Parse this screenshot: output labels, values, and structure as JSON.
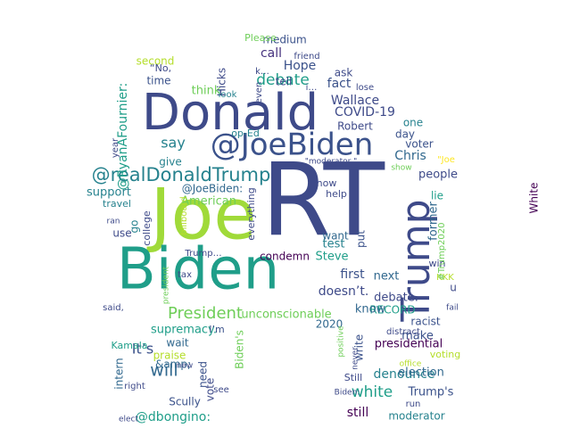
{
  "colors": {
    "background": "#ffffff",
    "palette": [
      "#440154",
      "#482878",
      "#3e4a89",
      "#31688e",
      "#26828e",
      "#1f9e89",
      "#35b779",
      "#6ece58",
      "#b5de2b",
      "#fde725"
    ]
  },
  "words": [
    {
      "text": "RT",
      "color": "#3e4a89"
    },
    {
      "text": "Joe",
      "color": "#a0da39"
    },
    {
      "text": "Biden",
      "color": "#1f9e89"
    },
    {
      "text": "Donald",
      "color": "#3e4a89"
    },
    {
      "text": "Trump",
      "color": "#3e4a89"
    },
    {
      "text": "@JoeBiden",
      "color": "#3b528b"
    },
    {
      "text": "@realDonaldTrump",
      "color": "#26828e"
    },
    {
      "text": "President",
      "color": "#6ece58"
    },
    {
      "text": "debate",
      "color": "#1f9e89"
    },
    {
      "text": "say",
      "color": "#26828e"
    },
    {
      "text": "will",
      "color": "#31688e"
    },
    {
      "text": "white",
      "color": "#1f9e89"
    },
    {
      "text": "Chris",
      "color": "#31688e"
    },
    {
      "text": "COVID-19",
      "color": "#3e4a89"
    },
    {
      "text": "Wallace",
      "color": "#3e4a89"
    },
    {
      "text": "fact",
      "color": "#3b528b"
    },
    {
      "text": "Hope",
      "color": "#3b528b"
    },
    {
      "text": "call",
      "color": "#46327e"
    },
    {
      "text": "medium",
      "color": "#3b528b"
    },
    {
      "text": "unconscionable",
      "color": "#6ece58"
    },
    {
      "text": "supremacy.",
      "color": "#1f9e89"
    },
    {
      "text": "It’s",
      "color": "#3b528b"
    },
    {
      "text": "denounce",
      "color": "#26828e"
    },
    {
      "text": "moderator",
      "color": "#26828e"
    },
    {
      "text": "election",
      "color": "#31688e"
    },
    {
      "text": "Trump's",
      "color": "#3b528b"
    },
    {
      "text": "Scully",
      "color": "#3b528b"
    },
    {
      "text": "@dbongino:",
      "color": "#1f9e89"
    },
    {
      "text": "still",
      "color": "#440154"
    },
    {
      "text": "people",
      "color": "#3e4a89"
    },
    {
      "text": "former",
      "color": "#31688e"
    },
    {
      "text": "condemn",
      "color": "#440154"
    },
    {
      "text": "first",
      "color": "#3b528b"
    },
    {
      "text": "next",
      "color": "#31688e"
    },
    {
      "text": "doesn’t.",
      "color": "#3e4a89"
    },
    {
      "text": "debate.",
      "color": "#3e4a89"
    },
    {
      "text": "RECORD",
      "color": "#1f9e89"
    },
    {
      "text": "know",
      "color": "#31688e"
    },
    {
      "text": "make",
      "color": "#3b528b"
    },
    {
      "text": "presidential",
      "color": "#440154"
    },
    {
      "text": "racist",
      "color": "#3b528b"
    },
    {
      "text": "Steve",
      "color": "#1f9e89"
    },
    {
      "text": "test",
      "color": "#26828e"
    },
    {
      "text": "want",
      "color": "#31688e"
    },
    {
      "text": "put",
      "color": "#3b528b"
    },
    {
      "text": "lie",
      "color": "#1f9e89"
    },
    {
      "text": "support",
      "color": "#26828e"
    },
    {
      "text": "give",
      "color": "#26828e"
    },
    {
      "text": "American",
      "color": "#6ece58"
    },
    {
      "text": "@JoeBiden:",
      "color": "#31688e"
    },
    {
      "text": "think",
      "color": "#6ece58"
    },
    {
      "text": "time",
      "color": "#3b528b"
    },
    {
      "text": "second",
      "color": "#b5de2b"
    },
    {
      "text": "Hicks",
      "color": "#3e4a89"
    },
    {
      "text": "tell",
      "color": "#3e4a89"
    },
    {
      "text": "ask",
      "color": "#3e4a89"
    },
    {
      "text": "Robert",
      "color": "#3e4a89"
    },
    {
      "text": "day",
      "color": "#3b528b"
    },
    {
      "text": "one",
      "color": "#26828e"
    },
    {
      "text": "voter",
      "color": "#3b528b"
    },
    {
      "text": "White",
      "color": "#440154"
    },
    {
      "text": "op-Ed",
      "color": "#26828e"
    },
    {
      "text": "everything",
      "color": "#3e4a89"
    },
    {
      "text": "help",
      "color": "#3e4a89"
    },
    {
      "text": "now",
      "color": "#3e4a89"
    },
    {
      "text": "@RyanAFournier:",
      "color": "#1f9e89"
    },
    {
      "text": "travel",
      "color": "#26828e"
    },
    {
      "text": "use",
      "color": "#3e4a89"
    },
    {
      "text": "go",
      "color": "#26828e"
    },
    {
      "text": "college",
      "color": "#3e4a89"
    },
    {
      "text": "wait",
      "color": "#31688e"
    },
    {
      "text": "praise",
      "color": "#b5de2b"
    },
    {
      "text": "&amp;",
      "color": "#31688e"
    },
    {
      "text": "intern",
      "color": "#31688e"
    },
    {
      "text": "need",
      "color": "#3b528b"
    },
    {
      "text": "vote",
      "color": "#3e4a89"
    },
    {
      "text": "Biden's",
      "color": "#6ece58"
    },
    {
      "text": "I’m",
      "color": "#3b528b"
    },
    {
      "text": "Kamala",
      "color": "#1f9e89"
    },
    {
      "text": "write",
      "color": "#3b528b"
    },
    {
      "text": "voting",
      "color": "#b5de2b"
    },
    {
      "text": "win",
      "color": "#3e4a89"
    },
    {
      "text": "u",
      "color": "#3e4a89"
    },
    {
      "text": "KKK",
      "color": "#b5de2b"
    },
    {
      "text": "#Trump2020",
      "color": "#6ece58"
    },
    {
      "text": "2020",
      "color": "#31688e"
    },
    {
      "text": "Please",
      "color": "#6ece58"
    },
    {
      "text": "friend",
      "color": "#3e4a89"
    },
    {
      "text": "“No,",
      "color": "#3e4a89"
    },
    {
      "text": "k…",
      "color": "#3e4a89"
    },
    {
      "text": "i…",
      "color": "#3e4a89"
    },
    {
      "text": "look",
      "color": "#26828e"
    },
    {
      "text": "even",
      "color": "#3e4a89"
    },
    {
      "text": "lose",
      "color": "#3e4a89"
    },
    {
      "text": "\"moderator,\"",
      "color": "#3e4a89"
    },
    {
      "text": "\"Joe",
      "color": "#fde725"
    },
    {
      "text": "show",
      "color": "#6ece58"
    },
    {
      "text": "year",
      "color": "#3e4a89"
    },
    {
      "text": "ran",
      "color": "#3e4a89"
    },
    {
      "text": "billboard",
      "color": "#b5de2b"
    },
    {
      "text": "Trump…",
      "color": "#3e4a89"
    },
    {
      "text": "tax",
      "color": "#3e4a89"
    },
    {
      "text": "president",
      "color": "#6ece58"
    },
    {
      "text": "said,",
      "color": "#3e4a89"
    },
    {
      "text": "fail",
      "color": "#3e4a89"
    },
    {
      "text": "distract",
      "color": "#3e4a89"
    },
    {
      "text": "positive",
      "color": "#6ece58"
    },
    {
      "text": "never",
      "color": "#3e4a89"
    },
    {
      "text": "office",
      "color": "#b5de2b"
    },
    {
      "text": "run",
      "color": "#3e4a89"
    },
    {
      "text": "Still",
      "color": "#3e4a89"
    },
    {
      "text": "Biden:",
      "color": "#3e4a89"
    },
    {
      "text": "new",
      "color": "#3e4a89"
    },
    {
      "text": "right",
      "color": "#3e4a89"
    },
    {
      "text": "see",
      "color": "#3e4a89"
    },
    {
      "text": "elect",
      "color": "#3e4a89"
    }
  ]
}
